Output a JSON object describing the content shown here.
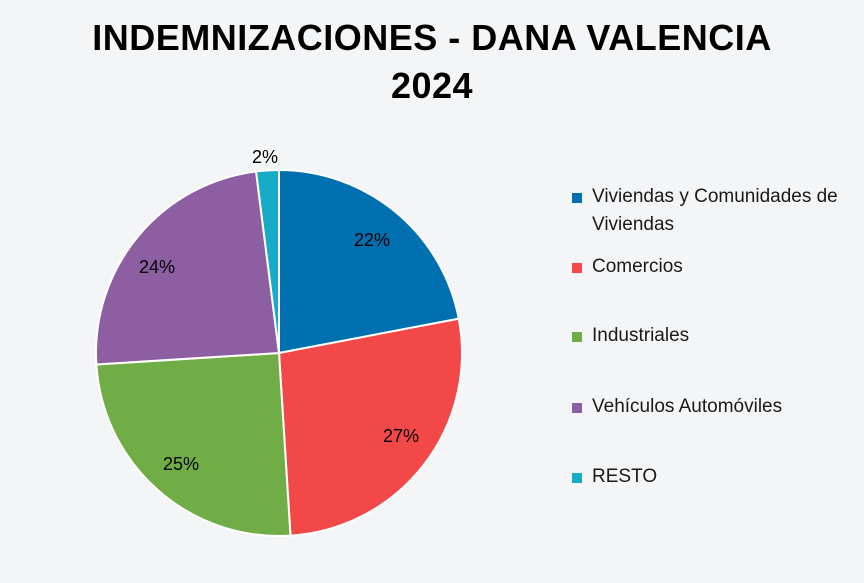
{
  "chart_data": {
    "type": "pie",
    "title_lines": [
      "INDEMNIZACIONES - DANA VALENCIA",
      "2024"
    ],
    "slices": [
      {
        "name": "Viviendas y Comunidades de Viviendas",
        "value": 22,
        "label": "22%",
        "color": "#0070b0"
      },
      {
        "name": "Comercios",
        "value": 27,
        "label": "27%",
        "color": "#f24848"
      },
      {
        "name": "Industriales",
        "value": 25,
        "label": "25%",
        "color": "#70ad47"
      },
      {
        "name": "Vehículos Automóviles",
        "value": 24,
        "label": "24%",
        "color": "#8e5ea2"
      },
      {
        "name": "RESTO",
        "value": 2,
        "label": "2%",
        "color": "#17abc7"
      }
    ],
    "legend_position": "right"
  }
}
